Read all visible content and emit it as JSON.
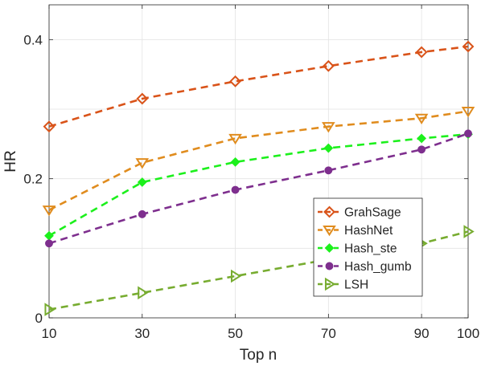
{
  "chart_data": {
    "type": "line",
    "xlabel": "Top n",
    "ylabel": "HR",
    "x": [
      10,
      30,
      50,
      70,
      90,
      100
    ],
    "xlim": [
      10,
      100
    ],
    "ylim": [
      0,
      0.45
    ],
    "x_ticks": [
      10,
      30,
      50,
      70,
      90,
      100
    ],
    "y_ticks": [
      0,
      0.2,
      0.4
    ],
    "y_tick_labels": [
      "0",
      "0.2",
      "0.4"
    ],
    "grid": true,
    "legend_position": "bottom-right",
    "series": [
      {
        "name": "GrahSage",
        "color": "#D95319",
        "marker": "diamond",
        "marker_fill": "none",
        "values": [
          0.275,
          0.315,
          0.34,
          0.362,
          0.382,
          0.39
        ]
      },
      {
        "name": "HashNet",
        "color": "#E08C1E",
        "marker": "triangle-down",
        "marker_fill": "none",
        "values": [
          0.155,
          0.223,
          0.258,
          0.275,
          0.287,
          0.297
        ]
      },
      {
        "name": "Hash_ste",
        "color": "#1CF01C",
        "marker": "diamond",
        "marker_fill": "#1CF01C",
        "values": [
          0.118,
          0.195,
          0.224,
          0.244,
          0.258,
          0.264
        ]
      },
      {
        "name": "Hash_gumb",
        "color": "#7E2F8E",
        "marker": "circle",
        "marker_fill": "#7E2F8E",
        "values": [
          0.107,
          0.149,
          0.184,
          0.212,
          0.242,
          0.265
        ]
      },
      {
        "name": "LSH",
        "color": "#77AC30",
        "marker": "triangle-right",
        "marker_fill": "none",
        "values": [
          0.012,
          0.036,
          0.06,
          0.084,
          0.107,
          0.124
        ]
      }
    ]
  }
}
